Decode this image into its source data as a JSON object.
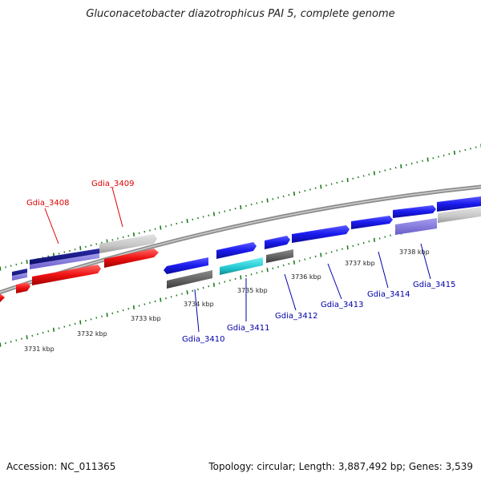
{
  "title": "Gluconacetobacter diazotrophicus PAI 5, complete genome",
  "footer": {
    "accession": "Accession: NC_011365",
    "topology": "Topology: circular; Length: 3,887,492 bp; Genes: 3,539"
  },
  "ticks": [
    "3731 kbp",
    "3732 kbp",
    "3733 kbp",
    "3734 kbp",
    "3735 kbp",
    "3736 kbp",
    "3737 kbp",
    "3738 kbp"
  ],
  "genes": [
    {
      "name": "Gdia_3408",
      "color": "#dd0000"
    },
    {
      "name": "Gdia_3409",
      "color": "#dd0000"
    },
    {
      "name": "Gdia_3410",
      "color": "#0000aa"
    },
    {
      "name": "Gdia_3411",
      "color": "#0000aa"
    },
    {
      "name": "Gdia_3412",
      "color": "#0000aa"
    },
    {
      "name": "Gdia_3413",
      "color": "#0000aa"
    },
    {
      "name": "Gdia_3414",
      "color": "#0000aa"
    },
    {
      "name": "Gdia_3415",
      "color": "#0000aa"
    }
  ],
  "colors": {
    "forward_cds": "#1a1aee",
    "reverse_cds": "#ee1111",
    "dark_blue": "#101080",
    "light_purple": "#7b6fd6",
    "cyan": "#22c8d0",
    "dark_grey": "#666666",
    "light_grey": "#c8c8c8",
    "backbone": "#888888",
    "tick_green": "#1e7a1e"
  }
}
